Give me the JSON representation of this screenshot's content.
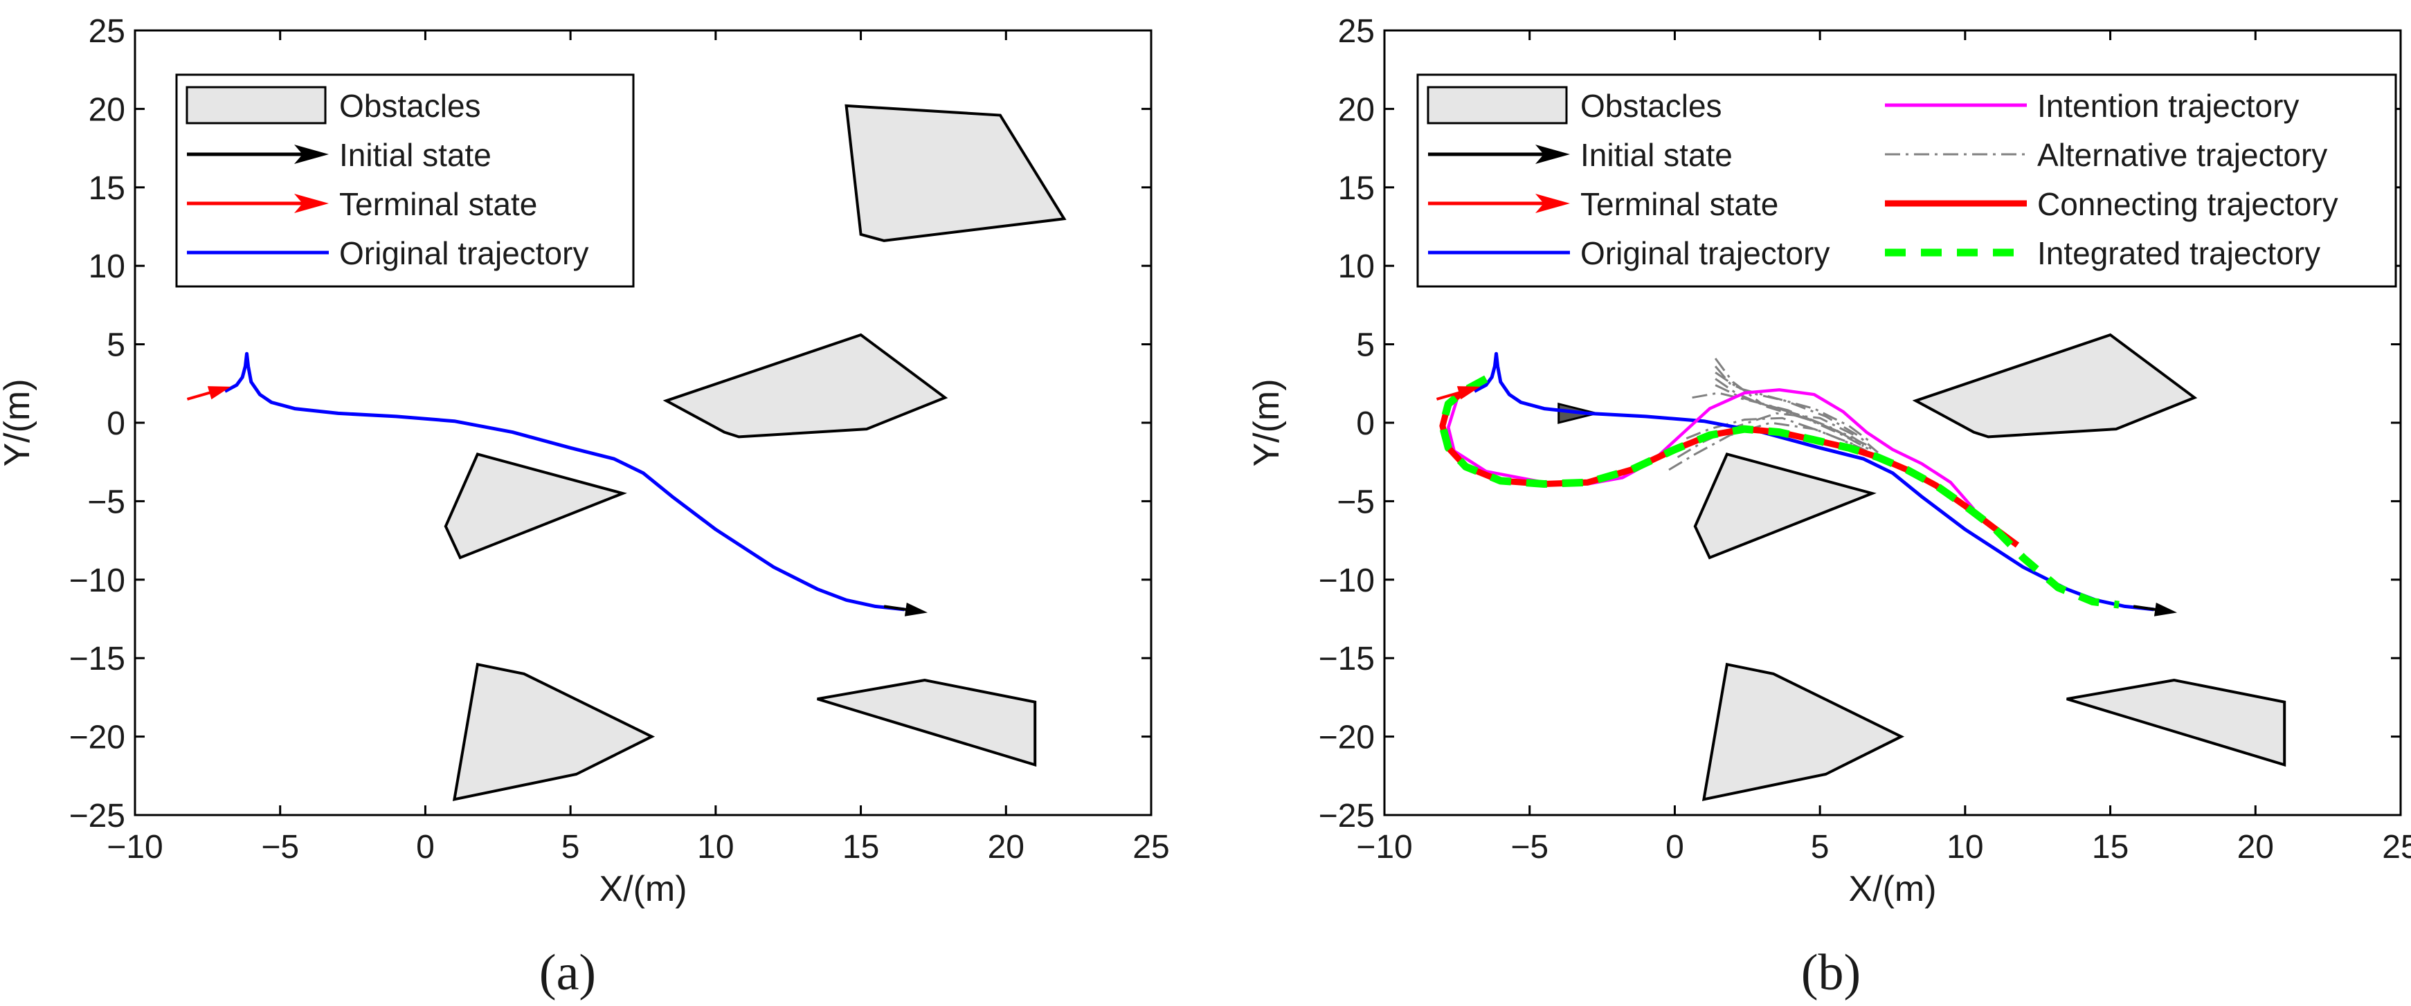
{
  "chart_data": [
    {
      "panel": "a",
      "type": "line",
      "caption": [
        "(",
        "a",
        ")"
      ],
      "xlabel": "X/(m)",
      "ylabel": "Y/(m)",
      "xlim": [
        -10,
        25
      ],
      "ylim": [
        -25,
        25
      ],
      "xticks": [
        -10,
        -5,
        0,
        5,
        10,
        15,
        20,
        25
      ],
      "yticks": [
        -25,
        -20,
        -15,
        -10,
        -5,
        0,
        5,
        10,
        15,
        20,
        25
      ],
      "xtick_labels": [
        "−10",
        "−5",
        "0",
        "5",
        "10",
        "15",
        "20",
        "25"
      ],
      "ytick_labels": [
        "−25",
        "−20",
        "−15",
        "−10",
        "−5",
        "0",
        "5",
        "10",
        "15",
        "20",
        "25"
      ],
      "legend": [
        {
          "label": "Obstacles",
          "kind": "patch"
        },
        {
          "label": "Initial state",
          "kind": "arrow",
          "color": "#000000"
        },
        {
          "label": "Terminal state",
          "kind": "arrow",
          "color": "#ff0000"
        },
        {
          "label": "Original trajectory",
          "kind": "line",
          "color": "#0000ff"
        }
      ],
      "obstacles": [
        [
          [
            14.5,
            20.2
          ],
          [
            19.8,
            19.6
          ],
          [
            22.0,
            13.0
          ],
          [
            15.8,
            11.6
          ],
          [
            15.0,
            12.0
          ]
        ],
        [
          [
            8.3,
            1.4
          ],
          [
            15.0,
            5.6
          ],
          [
            17.9,
            1.6
          ],
          [
            15.2,
            -0.4
          ],
          [
            10.8,
            -0.9
          ],
          [
            10.3,
            -0.6
          ]
        ],
        [
          [
            1.8,
            -2.0
          ],
          [
            6.8,
            -4.5
          ],
          [
            1.2,
            -8.6
          ],
          [
            0.7,
            -6.6
          ]
        ],
        [
          [
            1.8,
            -15.4
          ],
          [
            3.4,
            -16.0
          ],
          [
            7.8,
            -20.0
          ],
          [
            5.2,
            -22.4
          ],
          [
            1.0,
            -24.0
          ]
        ],
        [
          [
            13.5,
            -17.6
          ],
          [
            17.2,
            -16.4
          ],
          [
            21.0,
            -17.8
          ],
          [
            21.0,
            -21.8
          ]
        ]
      ],
      "series": [
        {
          "name": "Original trajectory",
          "color": "#0000ff",
          "x": [
            -6.9,
            -6.5,
            -6.3,
            -6.2,
            -6.15,
            -6.1,
            -6.0,
            -5.7,
            -5.3,
            -4.5,
            -3.0,
            -1.0,
            1.0,
            3.0,
            5.0,
            6.5,
            7.5,
            8.5,
            10.0,
            12.0,
            13.5,
            14.5,
            15.5,
            16.5
          ],
          "y": [
            2.0,
            2.4,
            2.9,
            3.6,
            4.4,
            3.6,
            2.6,
            1.8,
            1.3,
            0.9,
            0.6,
            0.4,
            0.1,
            -0.6,
            -1.6,
            -2.3,
            -3.2,
            -4.7,
            -6.8,
            -9.2,
            -10.6,
            -11.3,
            -11.7,
            -11.9
          ]
        },
        {
          "name": "Terminal state",
          "color": "#ff0000",
          "x": [
            -8.2,
            -6.7
          ],
          "y": [
            1.5,
            2.3
          ]
        },
        {
          "name": "Initial state",
          "color": "#000000",
          "x": [
            15.8,
            17.3
          ],
          "y": [
            -11.7,
            -12.1
          ]
        }
      ]
    },
    {
      "panel": "b",
      "type": "line",
      "caption": [
        "(",
        "b",
        ")"
      ],
      "xlabel": "X/(m)",
      "ylabel": "Y/(m)",
      "xlim": [
        -10,
        25
      ],
      "ylim": [
        -25,
        25
      ],
      "xticks": [
        -10,
        -5,
        0,
        5,
        10,
        15,
        20,
        25
      ],
      "yticks": [
        -25,
        -20,
        -15,
        -10,
        -5,
        0,
        5,
        10,
        15,
        20,
        25
      ],
      "xtick_labels": [
        "−10",
        "−5",
        "0",
        "5",
        "10",
        "15",
        "20",
        "25"
      ],
      "ytick_labels": [
        "−25",
        "−20",
        "−15",
        "−10",
        "−5",
        "0",
        "5",
        "10",
        "15",
        "20",
        "25"
      ],
      "legend": [
        {
          "label": "Obstacles",
          "kind": "patch"
        },
        {
          "label": "Initial state",
          "kind": "arrow",
          "color": "#000000"
        },
        {
          "label": "Terminal state",
          "kind": "arrow",
          "color": "#ff0000"
        },
        {
          "label": "Original trajectory",
          "kind": "line",
          "color": "#0000ff"
        },
        {
          "label": "Intention trajectory",
          "kind": "line",
          "color": "#ff00ff"
        },
        {
          "label": "Alternative trajectory",
          "kind": "dashdot",
          "color": "#808080"
        },
        {
          "label": "Connecting trajectory",
          "kind": "thick",
          "color": "#ff0000"
        },
        {
          "label": "Integrated trajectory",
          "kind": "dashed",
          "color": "#00ff00"
        }
      ],
      "obstacles": [
        [
          [
            8.3,
            1.4
          ],
          [
            15.0,
            5.6
          ],
          [
            17.9,
            1.6
          ],
          [
            15.2,
            -0.4
          ],
          [
            10.8,
            -0.9
          ],
          [
            10.3,
            -0.6
          ]
        ],
        [
          [
            1.8,
            -2.0
          ],
          [
            6.8,
            -4.5
          ],
          [
            1.2,
            -8.6
          ],
          [
            0.7,
            -6.6
          ]
        ],
        [
          [
            1.8,
            -15.4
          ],
          [
            3.4,
            -16.0
          ],
          [
            7.8,
            -20.0
          ],
          [
            5.2,
            -22.4
          ],
          [
            1.0,
            -24.0
          ]
        ],
        [
          [
            13.5,
            -17.6
          ],
          [
            17.2,
            -16.4
          ],
          [
            21.0,
            -17.8
          ],
          [
            21.0,
            -21.8
          ]
        ]
      ],
      "series": [
        {
          "name": "Alternative trajectory",
          "color": "#808080",
          "x": [
            [
              1.4,
              2.0,
              3.0,
              4.3,
              5.5,
              6.5
            ],
            [
              1.4,
              1.9,
              2.6,
              3.8,
              5.2,
              6.3,
              7.0
            ],
            [
              1.4,
              2.2,
              3.4,
              4.8,
              6.0,
              6.8
            ],
            [
              1.4,
              2.1,
              3.2,
              4.6,
              5.8,
              6.7
            ],
            [
              1.4,
              2.3,
              3.6,
              4.9,
              6.1,
              6.9
            ],
            [
              0.6,
              1.5,
              2.6,
              3.9,
              5.3,
              6.6
            ],
            [
              0.1,
              1.0,
              2.2,
              3.5,
              5.0,
              6.3
            ],
            [
              -0.2,
              0.7,
              1.9,
              3.3,
              4.8,
              6.2
            ],
            [
              0.4,
              1.2,
              2.4,
              3.7,
              5.1,
              6.4,
              7.1
            ]
          ],
          "y": [
            [
              4.1,
              2.6,
              1.2,
              0.5,
              -0.4,
              -1.5
            ],
            [
              3.6,
              2.5,
              1.9,
              1.4,
              0.4,
              -0.8,
              -1.9
            ],
            [
              3.2,
              2.2,
              1.6,
              0.9,
              -0.2,
              -1.3
            ],
            [
              2.8,
              1.9,
              1.0,
              0.2,
              -0.8,
              -1.7
            ],
            [
              2.4,
              1.6,
              0.9,
              0.0,
              -0.9,
              -1.8
            ],
            [
              1.6,
              1.9,
              1.4,
              0.8,
              -0.3,
              -1.4
            ],
            [
              -2.2,
              -1.2,
              -0.2,
              0.6,
              0.3,
              -0.9
            ],
            [
              -3.0,
              -2.0,
              -0.8,
              0.0,
              -0.4,
              -1.4
            ],
            [
              -1.0,
              -0.4,
              0.2,
              0.3,
              -0.6,
              -1.6,
              -2.3
            ]
          ]
        },
        {
          "name": "Original trajectory",
          "color": "#0000ff",
          "x": [
            -6.9,
            -6.5,
            -6.3,
            -6.2,
            -6.15,
            -6.1,
            -6.0,
            -5.7,
            -5.3,
            -4.5,
            -3.0,
            -1.0,
            1.0,
            3.0,
            5.0,
            6.5,
            7.5,
            8.5,
            10.0,
            12.0,
            13.5,
            14.5,
            15.5,
            16.5
          ],
          "y": [
            2.0,
            2.4,
            2.9,
            3.6,
            4.4,
            3.6,
            2.6,
            1.8,
            1.3,
            0.9,
            0.6,
            0.4,
            0.1,
            -0.6,
            -1.6,
            -2.3,
            -3.2,
            -4.7,
            -6.8,
            -9.2,
            -10.6,
            -11.3,
            -11.7,
            -11.9
          ]
        },
        {
          "name": "Intention trajectory",
          "color": "#ff00ff",
          "x": [
            -7.5,
            -7.8,
            -7.6,
            -6.5,
            -4.5,
            -3.0,
            -1.8,
            -0.8,
            0.2,
            1.2,
            2.4,
            3.6,
            4.8,
            5.8,
            6.6,
            7.5,
            8.5,
            9.5,
            10.3
          ],
          "y": [
            1.5,
            -0.3,
            -1.8,
            -3.1,
            -3.8,
            -3.9,
            -3.5,
            -2.5,
            -0.8,
            0.9,
            1.9,
            2.1,
            1.8,
            0.7,
            -0.6,
            -1.7,
            -2.6,
            -3.8,
            -5.5
          ]
        },
        {
          "name": "Connecting trajectory",
          "color": "#ff0000",
          "x": [
            -6.5,
            -7.2,
            -7.8,
            -8.0,
            -7.8,
            -7.2,
            -6.0,
            -4.5,
            -3.0,
            -1.5,
            0.0,
            1.2,
            2.4,
            3.6,
            4.8,
            6.0,
            7.0,
            8.0,
            9.0,
            10.0,
            11.0,
            11.8
          ],
          "y": [
            2.8,
            2.1,
            1.2,
            -0.2,
            -1.6,
            -2.8,
            -3.7,
            -3.9,
            -3.8,
            -3.0,
            -1.7,
            -0.8,
            -0.4,
            -0.6,
            -1.1,
            -1.6,
            -2.2,
            -3.0,
            -4.0,
            -5.3,
            -6.7,
            -7.8
          ]
        },
        {
          "name": "Integrated trajectory",
          "color": "#00ff00",
          "x": [
            -6.5,
            -7.2,
            -7.8,
            -8.0,
            -7.8,
            -7.2,
            -6.0,
            -4.5,
            -3.0,
            -1.5,
            0.0,
            1.2,
            2.4,
            3.6,
            4.8,
            6.0,
            7.0,
            8.0,
            9.0,
            10.0,
            11.0,
            12.0,
            13.2,
            14.4,
            15.3
          ],
          "y": [
            2.8,
            2.1,
            1.2,
            -0.2,
            -1.6,
            -2.8,
            -3.7,
            -3.9,
            -3.8,
            -3.0,
            -1.7,
            -0.8,
            -0.4,
            -0.6,
            -1.1,
            -1.6,
            -2.2,
            -3.0,
            -4.0,
            -5.3,
            -6.7,
            -8.6,
            -10.5,
            -11.4,
            -11.6
          ]
        },
        {
          "name": "Terminal state",
          "color": "#ff0000",
          "x": [
            -8.2,
            -6.7
          ],
          "y": [
            1.5,
            2.3
          ]
        },
        {
          "name": "Initial state",
          "color": "#000000",
          "x": [
            15.8,
            17.3
          ],
          "y": [
            -11.7,
            -12.1
          ]
        }
      ],
      "start_marker": [
        [
          -4.0,
          1.2
        ],
        [
          -2.7,
          0.6
        ],
        [
          -4.0,
          0.0
        ]
      ]
    }
  ]
}
